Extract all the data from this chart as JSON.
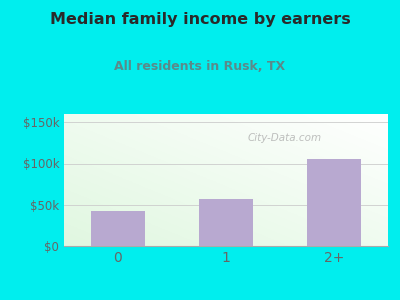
{
  "title": "Median family income by earners",
  "subtitle": "All residents in Rusk, TX",
  "categories": [
    "0",
    "1",
    "2+"
  ],
  "values": [
    42000,
    57000,
    105000
  ],
  "bar_color": "#b8a9d0",
  "title_color": "#2a2a2a",
  "subtitle_color": "#5a8a8a",
  "outer_bg": "#00eeee",
  "yticks": [
    0,
    50000,
    100000,
    150000
  ],
  "ytick_labels": [
    "$0",
    "$50k",
    "$100k",
    "$150k"
  ],
  "ylim": [
    0,
    160000
  ],
  "watermark": "City-Data.com",
  "tick_color": "#666666",
  "grid_color": "#cccccc"
}
